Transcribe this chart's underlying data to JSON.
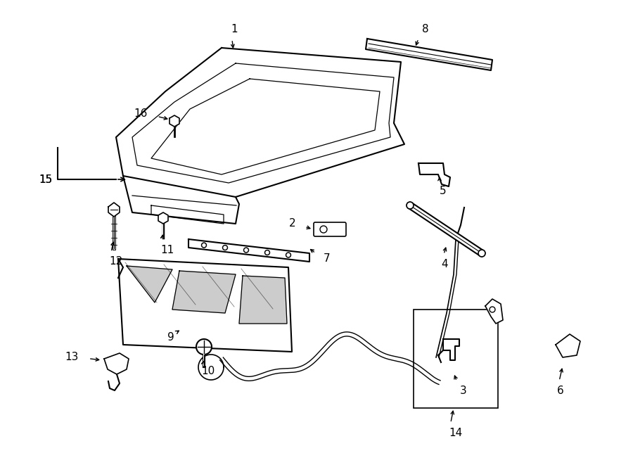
{
  "bg_color": "#ffffff",
  "line_color": "#000000",
  "figsize": [
    9.0,
    6.61
  ],
  "dpi": 100,
  "label_fontsize": 11
}
